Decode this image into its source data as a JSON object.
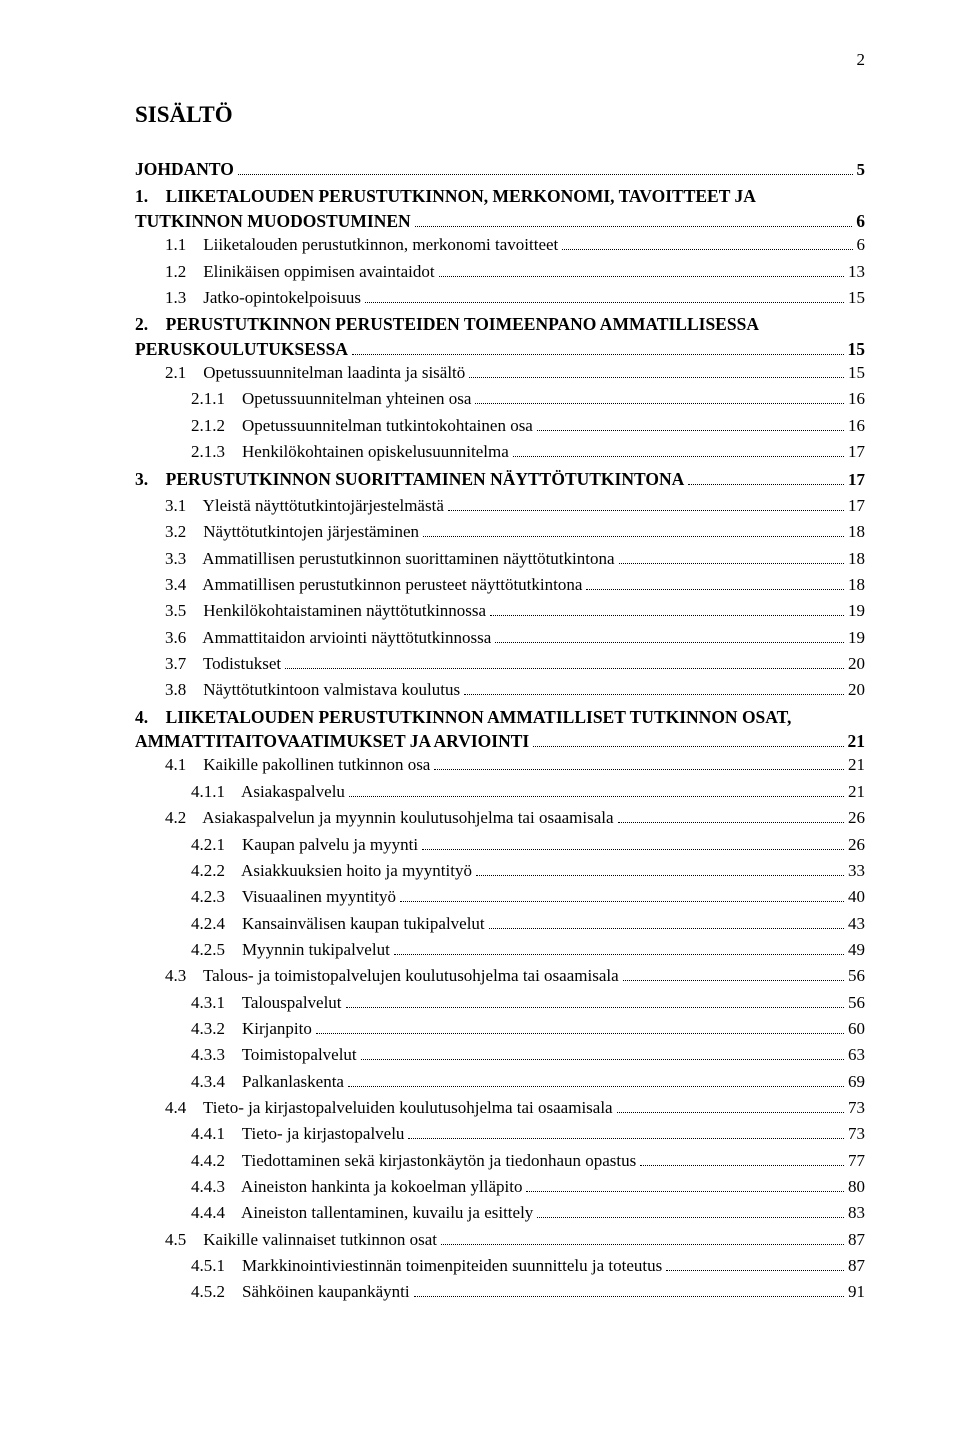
{
  "pageNumber": "2",
  "title": "SISÄLTÖ",
  "toc": [
    {
      "level": 1,
      "label": "JOHDANTO",
      "page": "5"
    },
    {
      "level": 1,
      "label": "1.    LIIKETALOUDEN PERUSTUTKINNON, MERKONOMI, TAVOITTEET JA TUTKINNON MUODOSTUMINEN",
      "page": "6",
      "wrapAfter": "JA"
    },
    {
      "level": 2,
      "label": "1.1    Liiketalouden perustutkinnon, merkonomi tavoitteet",
      "page": "6"
    },
    {
      "level": 2,
      "label": "1.2    Elinikäisen oppimisen avaintaidot",
      "page": "13"
    },
    {
      "level": 2,
      "label": "1.3    Jatko-opintokelpoisuus",
      "page": "15"
    },
    {
      "level": 1,
      "label": "2.    PERUSTUTKINNON PERUSTEIDEN TOIMEENPANO AMMATILLISESSA PERUSKOULUTUKSESSA",
      "page": "15",
      "wrapAfter": "AMMATILLISESSA"
    },
    {
      "level": 2,
      "label": "2.1    Opetussuunnitelman laadinta ja sisältö",
      "page": "15"
    },
    {
      "level": 3,
      "label": "2.1.1    Opetussuunnitelman yhteinen osa",
      "page": "16"
    },
    {
      "level": 3,
      "label": "2.1.2    Opetussuunnitelman tutkintokohtainen osa",
      "page": "16"
    },
    {
      "level": 3,
      "label": "2.1.3    Henkilökohtainen opiskelusuunnitelma",
      "page": "17"
    },
    {
      "level": 1,
      "label": "3.    PERUSTUTKINNON SUORITTAMINEN NÄYTTÖTUTKINTONA",
      "page": "17"
    },
    {
      "level": 2,
      "label": "3.1    Yleistä näyttötutkintojärjestelmästä",
      "page": "17"
    },
    {
      "level": 2,
      "label": "3.2    Näyttötutkintojen järjestäminen",
      "page": "18"
    },
    {
      "level": 2,
      "label": "3.3    Ammatillisen perustutkinnon suorittaminen näyttötutkintona",
      "page": "18"
    },
    {
      "level": 2,
      "label": "3.4    Ammatillisen perustutkinnon perusteet näyttötutkintona",
      "page": "18"
    },
    {
      "level": 2,
      "label": "3.5    Henkilökohtaistaminen näyttötutkinnossa",
      "page": "19"
    },
    {
      "level": 2,
      "label": "3.6    Ammattitaidon arviointi näyttötutkinnossa",
      "page": "19"
    },
    {
      "level": 2,
      "label": "3.7    Todistukset",
      "page": "20"
    },
    {
      "level": 2,
      "label": "3.8    Näyttötutkintoon valmistava koulutus",
      "page": "20"
    },
    {
      "level": 1,
      "label": "4.    LIIKETALOUDEN PERUSTUTKINNON AMMATILLISET TUTKINNON OSAT, AMMATTITAITOVAATIMUKSET JA ARVIOINTI",
      "page": "21",
      "wrapAfter": "OSAT,"
    },
    {
      "level": 2,
      "label": "4.1    Kaikille pakollinen tutkinnon osa",
      "page": "21"
    },
    {
      "level": 3,
      "label": "4.1.1    Asiakaspalvelu",
      "page": "21"
    },
    {
      "level": 2,
      "label": "4.2    Asiakaspalvelun ja myynnin koulutusohjelma tai osaamisala",
      "page": "26"
    },
    {
      "level": 3,
      "label": "4.2.1    Kaupan palvelu ja myynti",
      "page": "26"
    },
    {
      "level": 3,
      "label": "4.2.2    Asiakkuuksien hoito ja myyntityö",
      "page": "33"
    },
    {
      "level": 3,
      "label": "4.2.3    Visuaalinen myyntityö",
      "page": "40"
    },
    {
      "level": 3,
      "label": "4.2.4    Kansainvälisen kaupan tukipalvelut",
      "page": "43"
    },
    {
      "level": 3,
      "label": "4.2.5    Myynnin tukipalvelut",
      "page": "49"
    },
    {
      "level": 2,
      "label": "4.3    Talous- ja toimistopalvelujen koulutusohjelma tai osaamisala",
      "page": "56"
    },
    {
      "level": 3,
      "label": "4.3.1    Talouspalvelut",
      "page": "56"
    },
    {
      "level": 3,
      "label": "4.3.2    Kirjanpito",
      "page": "60"
    },
    {
      "level": 3,
      "label": "4.3.3    Toimistopalvelut",
      "page": "63"
    },
    {
      "level": 3,
      "label": "4.3.4    Palkanlaskenta",
      "page": "69"
    },
    {
      "level": 2,
      "label": "4.4    Tieto- ja kirjastopalveluiden koulutusohjelma tai osaamisala",
      "page": "73"
    },
    {
      "level": 3,
      "label": "4.4.1    Tieto- ja kirjastopalvelu",
      "page": "73"
    },
    {
      "level": 3,
      "label": "4.4.2    Tiedottaminen sekä kirjastonkäytön ja tiedonhaun opastus",
      "page": "77"
    },
    {
      "level": 3,
      "label": "4.4.3    Aineiston hankinta ja kokoelman ylläpito",
      "page": "80"
    },
    {
      "level": 3,
      "label": "4.4.4    Aineiston tallentaminen, kuvailu ja esittely",
      "page": "83"
    },
    {
      "level": 2,
      "label": "4.5    Kaikille valinnaiset tutkinnon osat",
      "page": "87"
    },
    {
      "level": 3,
      "label": "4.5.1    Markkinointiviestinnän toimenpiteiden suunnittelu ja toteutus",
      "page": "87"
    },
    {
      "level": 3,
      "label": "4.5.2    Sähköinen kaupankäynti",
      "page": "91"
    }
  ]
}
